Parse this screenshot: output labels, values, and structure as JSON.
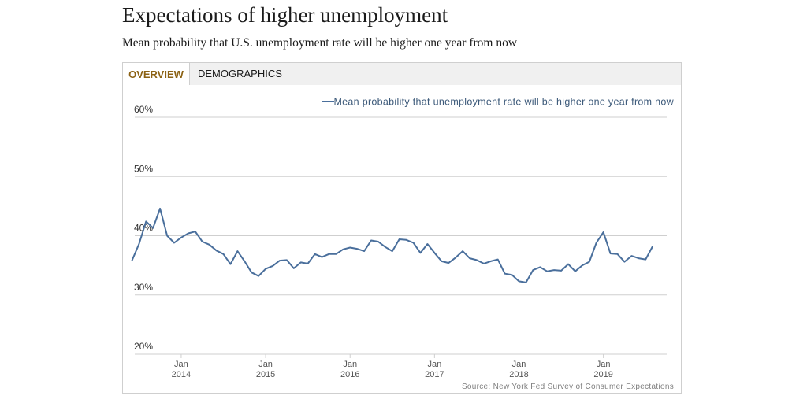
{
  "header": {
    "title": "Expectations of higher unemployment",
    "subtitle": "Mean probability that U.S. unemployment rate will be higher one year from now"
  },
  "tabs": [
    {
      "label": "OVERVIEW",
      "active": true
    },
    {
      "label": "DEMOGRAPHICS",
      "active": false
    }
  ],
  "colors": {
    "series": "#4a6f9c",
    "active_tab": "#8c6214"
  },
  "chart_data": {
    "type": "line",
    "title": "Expectations of higher unemployment",
    "subtitle": "Mean probability that U.S. unemployment rate will be higher one year from now",
    "source": "Source: New York Fed Survey of Consumer Expectations",
    "legend": [
      "Mean probability that unemployment rate will be higher one year from now"
    ],
    "legend_position": "top-right",
    "ylim": [
      20,
      60
    ],
    "yticks": [
      20,
      30,
      40,
      50,
      60
    ],
    "ytick_labels": [
      "20%",
      "30%",
      "40%",
      "50%",
      "60%"
    ],
    "xlim": [
      2013.45,
      2019.75
    ],
    "xticks": [
      {
        "x": 2014,
        "top": "Jan",
        "bottom": "2014"
      },
      {
        "x": 2015,
        "top": "Jan",
        "bottom": "2015"
      },
      {
        "x": 2016,
        "top": "Jan",
        "bottom": "2016"
      },
      {
        "x": 2017,
        "top": "Jan",
        "bottom": "2017"
      },
      {
        "x": 2018,
        "top": "Jan",
        "bottom": "2018"
      },
      {
        "x": 2019,
        "top": "Jan",
        "bottom": "2019"
      }
    ],
    "grid": true,
    "series": [
      {
        "name": "Mean probability that unemployment rate will be higher one year from now",
        "start": "2013-06",
        "frequency": "monthly",
        "values": [
          35.8,
          38.6,
          42.4,
          41.3,
          44.6,
          40.0,
          38.8,
          39.7,
          40.4,
          40.7,
          39.0,
          38.5,
          37.5,
          36.9,
          35.2,
          37.4,
          35.7,
          33.8,
          33.2,
          34.4,
          34.9,
          35.8,
          35.9,
          34.5,
          35.5,
          35.3,
          36.9,
          36.4,
          36.9,
          36.9,
          37.7,
          38.0,
          37.8,
          37.4,
          39.2,
          39.0,
          38.1,
          37.4,
          39.4,
          39.3,
          38.8,
          37.1,
          38.6,
          37.1,
          35.7,
          35.4,
          36.3,
          37.4,
          36.2,
          35.9,
          35.3,
          35.7,
          36.0,
          33.6,
          33.4,
          32.3,
          32.1,
          34.2,
          34.7,
          34.0,
          34.2,
          34.1,
          35.2,
          34.0,
          35.0,
          35.6,
          38.8,
          40.6,
          37.0,
          36.9,
          35.6,
          36.6,
          36.2,
          36.0,
          38.2
        ]
      }
    ]
  }
}
